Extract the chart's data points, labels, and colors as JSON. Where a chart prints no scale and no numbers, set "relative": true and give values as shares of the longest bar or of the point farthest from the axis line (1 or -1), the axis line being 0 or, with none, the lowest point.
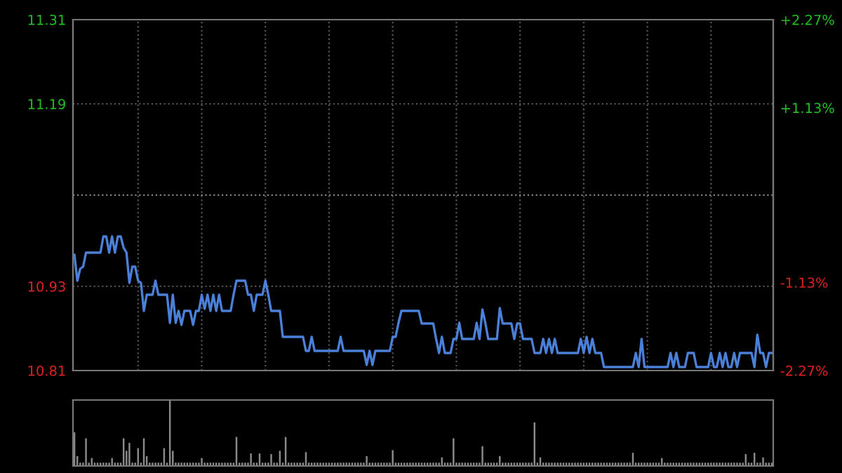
{
  "chart_data": [
    {
      "type": "line",
      "categories": [
        null,
        null,
        null,
        null,
        null,
        null,
        null,
        null,
        null,
        null,
        null,
        null,
        null,
        null,
        null,
        null,
        null,
        null,
        null,
        null,
        null,
        null,
        null,
        null,
        null,
        null,
        null,
        null,
        null,
        null,
        null,
        null,
        null,
        null,
        null,
        null,
        null,
        null,
        null,
        null,
        null,
        null,
        null,
        null,
        null,
        null,
        null,
        null,
        null,
        null,
        null,
        null,
        null,
        null,
        null,
        null,
        null,
        null,
        null,
        null,
        null,
        null,
        null,
        null,
        null,
        null,
        null,
        null,
        null,
        null,
        null,
        null,
        null,
        null,
        null,
        null,
        null,
        null,
        null,
        null,
        null,
        null,
        null,
        null,
        null,
        null,
        null,
        null,
        null,
        null,
        null,
        null,
        null,
        null,
        null,
        null,
        null,
        null,
        null,
        null,
        null,
        null,
        null,
        null,
        null,
        null,
        null,
        null,
        null,
        null,
        null,
        null,
        null,
        null,
        null,
        null,
        null,
        null,
        null,
        null,
        null,
        null,
        null,
        null,
        null,
        null,
        null,
        null,
        null,
        null,
        null,
        null,
        null,
        null,
        null,
        null,
        null,
        null,
        null,
        null,
        null,
        null,
        null,
        null,
        null,
        null,
        null,
        null,
        null,
        null,
        null,
        null,
        null,
        null,
        null,
        null,
        null,
        null,
        null,
        null,
        null,
        null,
        null,
        null,
        null,
        null,
        null,
        null,
        null,
        null,
        null,
        null,
        null,
        null,
        null,
        null,
        null,
        null,
        null,
        null,
        null,
        null,
        null,
        null,
        null,
        null,
        null,
        null,
        null,
        null,
        null,
        null,
        null,
        null,
        null,
        null,
        null,
        null,
        null,
        null,
        null,
        null,
        null,
        null,
        null,
        null,
        null,
        null,
        null,
        null,
        null,
        null,
        null,
        null,
        null,
        null,
        null,
        null,
        null,
        null,
        null,
        null,
        null,
        null,
        null,
        null,
        null,
        null,
        null,
        null,
        null,
        null,
        null,
        null,
        null,
        null,
        null,
        null,
        null,
        null,
        null,
        null
      ],
      "ylim": [
        10.81,
        11.31
      ],
      "yticks": [
        10.81,
        10.93,
        11.19,
        11.31
      ],
      "y2lim": [
        -2.27,
        2.27
      ],
      "y2ticks": [
        {
          "value": -2.27,
          "label": "-2.27%"
        },
        {
          "value": -1.13,
          "label": "-1.13%"
        },
        {
          "value": 1.13,
          "label": "+1.13%"
        },
        {
          "value": 2.27,
          "label": "+2.27%"
        }
      ],
      "tick_labels": "y",
      "grid": true,
      "ref_lines": [
        {
          "axis": "y",
          "value": 11.06,
          "color": "#888888",
          "line_style": "dotted"
        }
      ],
      "series": [
        {
          "color": "#4a80d8",
          "values": [
            10.975,
            10.938,
            10.955,
            10.958,
            10.978,
            10.978,
            10.978,
            10.978,
            10.978,
            10.978,
            11.001,
            11.001,
            10.978,
            11.001,
            10.978,
            11.001,
            11.001,
            10.985,
            10.978,
            10.935,
            10.958,
            10.958,
            10.938,
            10.935,
            10.895,
            10.918,
            10.918,
            10.918,
            10.938,
            10.918,
            10.918,
            10.918,
            10.918,
            10.878,
            10.918,
            10.878,
            10.895,
            10.875,
            10.895,
            10.895,
            10.895,
            10.875,
            10.895,
            10.895,
            10.918,
            10.898,
            10.918,
            10.895,
            10.918,
            10.895,
            10.918,
            10.895,
            10.895,
            10.895,
            10.895,
            10.918,
            10.938,
            10.938,
            10.938,
            10.938,
            10.918,
            10.918,
            10.895,
            10.918,
            10.918,
            10.918,
            10.938,
            10.918,
            10.895,
            10.895,
            10.895,
            10.895,
            10.858,
            10.858,
            10.858,
            10.858,
            10.858,
            10.858,
            10.858,
            10.858,
            10.838,
            10.838,
            10.858,
            10.838,
            10.838,
            10.838,
            10.838,
            10.838,
            10.838,
            10.838,
            10.838,
            10.838,
            10.858,
            10.838,
            10.838,
            10.838,
            10.838,
            10.838,
            10.838,
            10.838,
            10.838,
            10.818,
            10.838,
            10.818,
            10.838,
            10.838,
            10.838,
            10.838,
            10.838,
            10.838,
            10.858,
            10.858,
            10.878,
            10.895,
            10.895,
            10.895,
            10.895,
            10.895,
            10.895,
            10.895,
            10.877,
            10.877,
            10.877,
            10.877,
            10.877,
            10.855,
            10.835,
            10.858,
            10.835,
            10.835,
            10.835,
            10.855,
            10.855,
            10.878,
            10.855,
            10.855,
            10.855,
            10.855,
            10.855,
            10.878,
            10.855,
            10.897,
            10.878,
            10.855,
            10.855,
            10.855,
            10.855,
            10.899,
            10.877,
            10.877,
            10.877,
            10.877,
            10.855,
            10.877,
            10.877,
            10.855,
            10.855,
            10.855,
            10.855,
            10.835,
            10.835,
            10.835,
            10.855,
            10.835,
            10.855,
            10.835,
            10.855,
            10.835,
            10.835,
            10.835,
            10.835,
            10.835,
            10.835,
            10.835,
            10.835,
            10.855,
            10.835,
            10.858,
            10.835,
            10.855,
            10.835,
            10.835,
            10.835,
            10.815,
            10.815,
            10.815,
            10.815,
            10.815,
            10.815,
            10.815,
            10.815,
            10.815,
            10.815,
            10.815,
            10.835,
            10.815,
            10.855,
            10.815,
            10.815,
            10.815,
            10.815,
            10.815,
            10.815,
            10.815,
            10.815,
            10.815,
            10.835,
            10.815,
            10.835,
            10.815,
            10.815,
            10.815,
            10.835,
            10.835,
            10.835,
            10.815,
            10.815,
            10.815,
            10.815,
            10.815,
            10.835,
            10.815,
            10.815,
            10.835,
            10.815,
            10.835,
            10.815,
            10.815,
            10.835,
            10.815,
            10.835,
            10.835,
            10.835,
            10.835,
            10.835,
            10.815,
            10.861,
            10.835,
            10.835,
            10.815,
            10.835,
            10.835
          ]
        }
      ]
    },
    {
      "type": "bar",
      "relative": true,
      "categories": [
        null,
        null,
        null,
        null,
        null,
        null,
        null,
        null,
        null,
        null,
        null,
        null,
        null,
        null,
        null,
        null,
        null,
        null,
        null,
        null,
        null,
        null,
        null,
        null,
        null,
        null,
        null,
        null,
        null,
        null,
        null,
        null,
        null,
        null,
        null,
        null,
        null,
        null,
        null,
        null,
        null,
        null,
        null,
        null,
        null,
        null,
        null,
        null,
        null,
        null,
        null,
        null,
        null,
        null,
        null,
        null,
        null,
        null,
        null,
        null,
        null,
        null,
        null,
        null,
        null,
        null,
        null,
        null,
        null,
        null,
        null,
        null,
        null,
        null,
        null,
        null,
        null,
        null,
        null,
        null,
        null,
        null,
        null,
        null,
        null,
        null,
        null,
        null,
        null,
        null,
        null,
        null,
        null,
        null,
        null,
        null,
        null,
        null,
        null,
        null,
        null,
        null,
        null,
        null,
        null,
        null,
        null,
        null,
        null,
        null,
        null,
        null,
        null,
        null,
        null,
        null,
        null,
        null,
        null,
        null,
        null,
        null,
        null,
        null,
        null,
        null,
        null,
        null,
        null,
        null,
        null,
        null,
        null,
        null,
        null,
        null,
        null,
        null,
        null,
        null,
        null,
        null,
        null,
        null,
        null,
        null,
        null,
        null,
        null,
        null,
        null,
        null,
        null,
        null,
        null,
        null,
        null,
        null,
        null,
        null,
        null,
        null,
        null,
        null,
        null,
        null,
        null,
        null,
        null,
        null,
        null,
        null,
        null,
        null,
        null,
        null,
        null,
        null,
        null,
        null,
        null,
        null,
        null,
        null,
        null,
        null,
        null,
        null,
        null,
        null,
        null,
        null,
        null,
        null,
        null,
        null,
        null,
        null,
        null,
        null,
        null,
        null,
        null,
        null,
        null,
        null,
        null,
        null,
        null,
        null,
        null,
        null,
        null,
        null,
        null,
        null,
        null,
        null,
        null,
        null,
        null,
        null,
        null,
        null,
        null,
        null,
        null,
        null,
        null,
        null,
        null,
        null,
        null,
        null,
        null,
        null,
        null,
        null,
        null,
        null,
        null,
        null
      ],
      "series": [
        {
          "color": "#8a8a8a",
          "values": [
            0.51,
            0.15,
            0.05,
            0.05,
            0.42,
            0.05,
            0.12,
            0.05,
            0.05,
            0.05,
            0.05,
            0.05,
            0.05,
            0.12,
            0.05,
            0.05,
            0.05,
            0.42,
            0.23,
            0.35,
            0.05,
            0.05,
            0.27,
            0.05,
            0.42,
            0.15,
            0.05,
            0.05,
            0.05,
            0.05,
            0.05,
            0.27,
            0.05,
            1.0,
            0.23,
            0.05,
            0.05,
            0.05,
            0.05,
            0.05,
            0.05,
            0.05,
            0.05,
            0.05,
            0.12,
            0.05,
            0.05,
            0.05,
            0.05,
            0.05,
            0.05,
            0.05,
            0.05,
            0.05,
            0.05,
            0.05,
            0.44,
            0.05,
            0.05,
            0.05,
            0.05,
            0.19,
            0.05,
            0.05,
            0.19,
            0.05,
            0.05,
            0.05,
            0.18,
            0.05,
            0.05,
            0.23,
            0.05,
            0.44,
            0.05,
            0.05,
            0.05,
            0.05,
            0.05,
            0.05,
            0.21,
            0.05,
            0.05,
            0.05,
            0.05,
            0.05,
            0.05,
            0.05,
            0.05,
            0.05,
            0.05,
            0.05,
            0.05,
            0.05,
            0.05,
            0.05,
            0.05,
            0.05,
            0.05,
            0.05,
            0.05,
            0.15,
            0.05,
            0.05,
            0.05,
            0.05,
            0.05,
            0.05,
            0.05,
            0.05,
            0.24,
            0.05,
            0.05,
            0.05,
            0.05,
            0.05,
            0.05,
            0.05,
            0.05,
            0.05,
            0.05,
            0.05,
            0.05,
            0.05,
            0.05,
            0.05,
            0.05,
            0.13,
            0.05,
            0.05,
            0.05,
            0.42,
            0.05,
            0.05,
            0.05,
            0.05,
            0.05,
            0.05,
            0.05,
            0.05,
            0.05,
            0.3,
            0.05,
            0.05,
            0.05,
            0.05,
            0.05,
            0.15,
            0.05,
            0.05,
            0.05,
            0.05,
            0.05,
            0.05,
            0.05,
            0.05,
            0.05,
            0.05,
            0.05,
            0.66,
            0.05,
            0.13,
            0.05,
            0.05,
            0.05,
            0.05,
            0.05,
            0.05,
            0.05,
            0.05,
            0.05,
            0.05,
            0.05,
            0.05,
            0.05,
            0.05,
            0.05,
            0.05,
            0.05,
            0.05,
            0.05,
            0.05,
            0.05,
            0.05,
            0.05,
            0.05,
            0.05,
            0.05,
            0.05,
            0.05,
            0.05,
            0.05,
            0.05,
            0.2,
            0.05,
            0.05,
            0.05,
            0.05,
            0.05,
            0.05,
            0.05,
            0.05,
            0.05,
            0.12,
            0.05,
            0.05,
            0.05,
            0.05,
            0.05,
            0.05,
            0.05,
            0.05,
            0.05,
            0.05,
            0.05,
            0.05,
            0.05,
            0.05,
            0.05,
            0.05,
            0.05,
            0.05,
            0.05,
            0.05,
            0.05,
            0.05,
            0.05,
            0.05,
            0.05,
            0.05,
            0.05,
            0.05,
            0.18,
            0.05,
            0.05,
            0.2,
            0.05,
            0.05,
            0.13,
            0.05,
            0.05,
            0.05
          ]
        }
      ]
    }
  ]
}
